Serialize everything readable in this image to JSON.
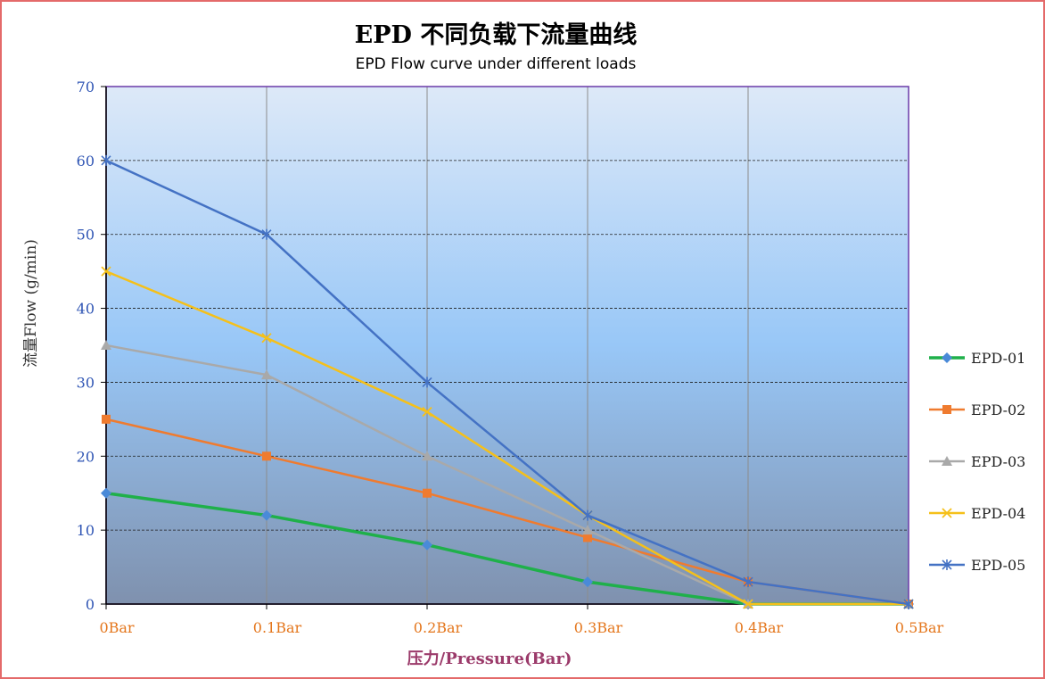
{
  "chart_data": {
    "type": "line",
    "title": "EPD 不同负载下流量曲线",
    "subtitle": "EPD Flow curve under different loads",
    "xlabel": "压力/Pressure(Bar)",
    "ylabel": "流量Flow (g/min)",
    "categories": [
      "0Bar",
      "0.1Bar",
      "0.2Bar",
      "0.3Bar",
      "0.4Bar",
      "0.5Bar"
    ],
    "ylim": [
      0,
      70
    ],
    "yticks": [
      0,
      10,
      20,
      30,
      40,
      50,
      60,
      70
    ],
    "grid": "vertical solid, horizontal dashed",
    "legend_position": "right",
    "series": [
      {
        "name": "EPD-01",
        "color": "#1fb04a",
        "marker": "diamond",
        "marker_color": "#4a8ad8",
        "values": [
          15,
          12,
          8,
          3,
          0,
          0
        ]
      },
      {
        "name": "EPD-02",
        "color": "#ef7b2f",
        "marker": "square",
        "marker_color": "#ef7b2f",
        "values": [
          25,
          20,
          15,
          9,
          3,
          0
        ]
      },
      {
        "name": "EPD-03",
        "color": "#a9a9a9",
        "marker": "triangle",
        "marker_color": "#a9a9a9",
        "values": [
          35,
          31,
          20,
          10,
          0,
          0
        ]
      },
      {
        "name": "EPD-04",
        "color": "#f5c01a",
        "marker": "x",
        "marker_color": "#f5c01a",
        "values": [
          45,
          36,
          26,
          12,
          0,
          0
        ]
      },
      {
        "name": "EPD-05",
        "color": "#4472c4",
        "marker": "star",
        "marker_color": "#4472c4",
        "values": [
          60,
          50,
          30,
          12,
          3,
          0
        ]
      }
    ]
  }
}
